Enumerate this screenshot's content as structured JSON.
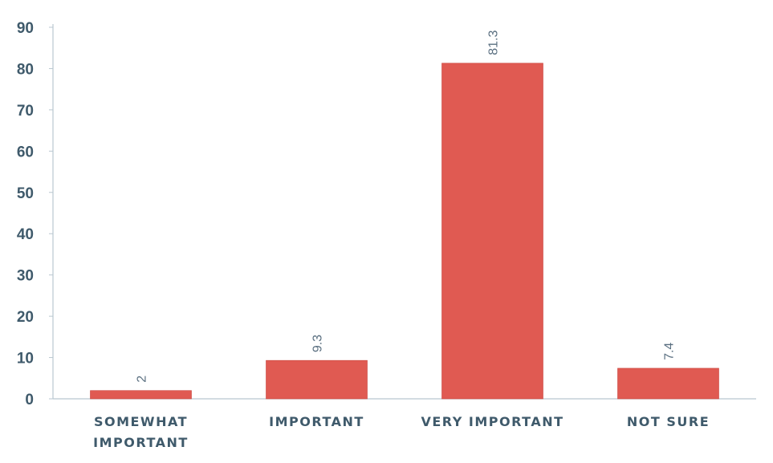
{
  "chart_data": {
    "type": "bar",
    "categories": [
      [
        "SOMEWHAT",
        "IMPORTANT"
      ],
      [
        "IMPORTANT"
      ],
      [
        "VERY IMPORTANT"
      ],
      [
        "NOT SURE"
      ]
    ],
    "values": [
      2,
      9.3,
      81.3,
      7.4
    ],
    "data_labels": [
      "2",
      "9.3",
      "81.3",
      "7.4"
    ],
    "ylim": [
      0,
      90
    ],
    "yticks": [
      0,
      10,
      20,
      30,
      40,
      50,
      60,
      70,
      80,
      90
    ],
    "grid": false,
    "data_label_orientation": "vertical",
    "colors": {
      "bar": "#e05a52",
      "bar_edge": "#c9433c",
      "axis": "#b9c7d0",
      "tick_text": "#3f5a6b"
    }
  }
}
